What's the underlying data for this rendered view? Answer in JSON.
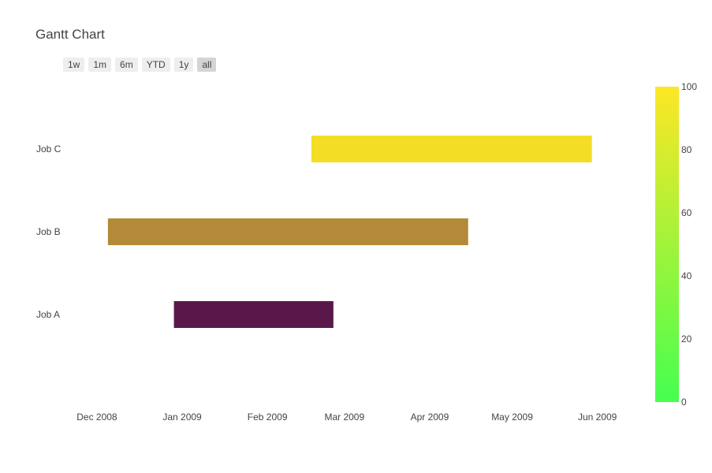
{
  "title": "Gantt Chart",
  "range_selector": {
    "buttons": [
      {
        "label": "1w",
        "active": false
      },
      {
        "label": "1m",
        "active": false
      },
      {
        "label": "6m",
        "active": false
      },
      {
        "label": "YTD",
        "active": false
      },
      {
        "label": "1y",
        "active": false
      },
      {
        "label": "all",
        "active": true
      }
    ]
  },
  "chart_data": {
    "type": "gantt",
    "xaxis": {
      "type": "date",
      "range": [
        "2008-11-25",
        "2009-06-14"
      ],
      "ticks": [
        {
          "date": "2008-12-01",
          "label": "Dec 2008"
        },
        {
          "date": "2009-01-01",
          "label": "Jan 2009"
        },
        {
          "date": "2009-02-01",
          "label": "Feb 2009"
        },
        {
          "date": "2009-03-01",
          "label": "Mar 2009"
        },
        {
          "date": "2009-04-01",
          "label": "Apr 2009"
        },
        {
          "date": "2009-05-01",
          "label": "May 2009"
        },
        {
          "date": "2009-06-01",
          "label": "Jun 2009"
        }
      ]
    },
    "tasks": [
      {
        "name": "Job A",
        "start": "2008-12-29",
        "finish": "2009-02-25",
        "color": "#5a184a"
      },
      {
        "name": "Job B",
        "start": "2008-12-05",
        "finish": "2009-04-15",
        "color": "#b38a37"
      },
      {
        "name": "Job C",
        "start": "2009-02-17",
        "finish": "2009-05-30",
        "color": "#f4dd25"
      }
    ],
    "colorbar": {
      "min": 0,
      "max": 100,
      "ticks": [
        0,
        20,
        40,
        60,
        80,
        100
      ],
      "colors": [
        "#46ff50",
        "#fde725"
      ]
    },
    "grid": false
  }
}
